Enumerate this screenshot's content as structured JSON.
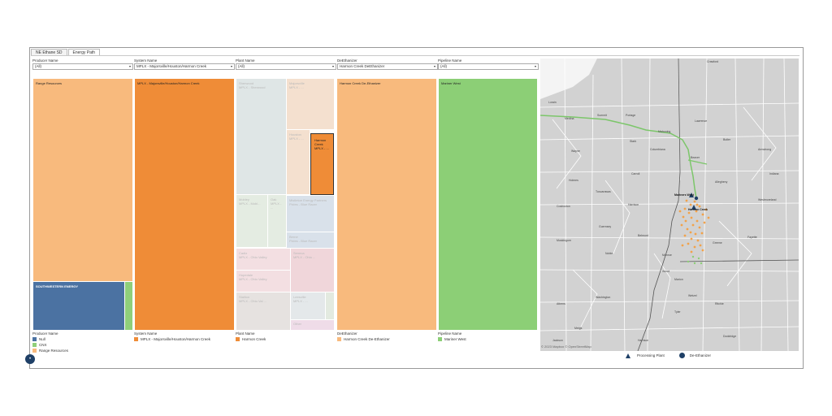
{
  "tabs": [
    "NE Ethane SD",
    "Energy Path"
  ],
  "filters": [
    {
      "label": "Producer Name",
      "value": "(All)"
    },
    {
      "label": "System Name",
      "value": "MPLX - Majorsville/Houston/Harmon Creek"
    },
    {
      "label": "Plant Name",
      "value": "(All)"
    },
    {
      "label": "DeEthanizer",
      "value": "Harmon Creek DeEthanizer"
    },
    {
      "label": "Pipeline Name",
      "value": "(All)"
    }
  ],
  "treemap": {
    "producer": {
      "range": "Range Resources",
      "southwestern": "SOUTHWESTERN ENERGY"
    },
    "system": "MPLX - Majorsville/Houston/Harmon Creek",
    "plants": {
      "sherwood": "Sherwood",
      "sherwood_sub": "MPLX - Sherwood",
      "majorsville": "Majorsville",
      "majorsville_sub": "MPLX - ...",
      "harmon": "Harmon Creek MPLX - ...",
      "houston": "Houston MPLX - ...",
      "mobley": "Mobley",
      "mobley_sub": "MPLX - Mobl...",
      "oak": "Oak",
      "oak_sub": "MPLX - ...",
      "smithburg": "Smithburg",
      "smithburg_sub": "Energy ...",
      "bluewater": "Mistletoe Energy Partners",
      "bluewater_sub": "Pixles - Blue Racer",
      "berne": "Berne",
      "berne_sub": "Pixles - Blue Racer",
      "cadiz": "Cadiz",
      "cadiz_sub": "MPLX - Ohio Valley",
      "seneca": "Seneca",
      "seneca_sub": "MPLX - Ohio ...",
      "hopedale": "Hopedale",
      "hopedale_sub": "MPLX - Ohio Valley",
      "south": "Stallion",
      "south_sub": "MPLX - Ohio Val ...",
      "leesville": "Leesville",
      "leesville_sub": "MPLX - ...",
      "other": "Other"
    },
    "deethanizer": "Harmon Creek De-Ethanizer",
    "pipeline": "Mariner West"
  },
  "legends": {
    "producer": {
      "title": "Producer Name",
      "items": [
        "Null",
        "CNX",
        "Range Resources"
      ]
    },
    "system": {
      "title": "System Name",
      "items": [
        "MPLX - Majorsville/Houston/Harmon Creek"
      ]
    },
    "plant": {
      "title": "Plant Name",
      "items": [
        "Harmon Creek"
      ]
    },
    "deethanizer": {
      "title": "DeEthanizer",
      "items": [
        "Harmon Creek De-Ethanizer"
      ]
    },
    "pipeline": {
      "title": "Pipeline Name",
      "items": [
        "Mariner West"
      ]
    }
  },
  "map": {
    "credit": "© 2023 Mapbox © OpenStreetMap",
    "labels": [
      "Crawford",
      "Lorain",
      "Medina",
      "Summit",
      "Portage",
      "Mahoning",
      "Columbiana",
      "Stark",
      "Wayne",
      "Holmes",
      "Tuscarawas",
      "Carroll",
      "Harrison",
      "Belmont",
      "Guernsey",
      "Coshocton",
      "Muskingum",
      "Noble",
      "Monroe",
      "Washington",
      "Athens",
      "Meigs",
      "Butler",
      "Armstrong",
      "Indiana",
      "Westmoreland",
      "Fayette",
      "Greene",
      "Allegheny",
      "Beaver",
      "Lawrence",
      "Marion",
      "Wood",
      "Wetzel",
      "Tyler",
      "Ritchie",
      "Doddridge",
      "Harrison",
      "Jackson",
      "Mariners West",
      "Harmon Creek"
    ],
    "legend": [
      "Processing Plant",
      "De-Ethanizer"
    ]
  },
  "colors": {
    "range": "#f8ba7d",
    "system": "#ef8c37",
    "southwestern": "#4b72a2",
    "cnx": "#8fcf7a",
    "pipeline": "#8ccf76",
    "pipeline_line": "#7cc66a",
    "wells": "#f2a24a"
  }
}
